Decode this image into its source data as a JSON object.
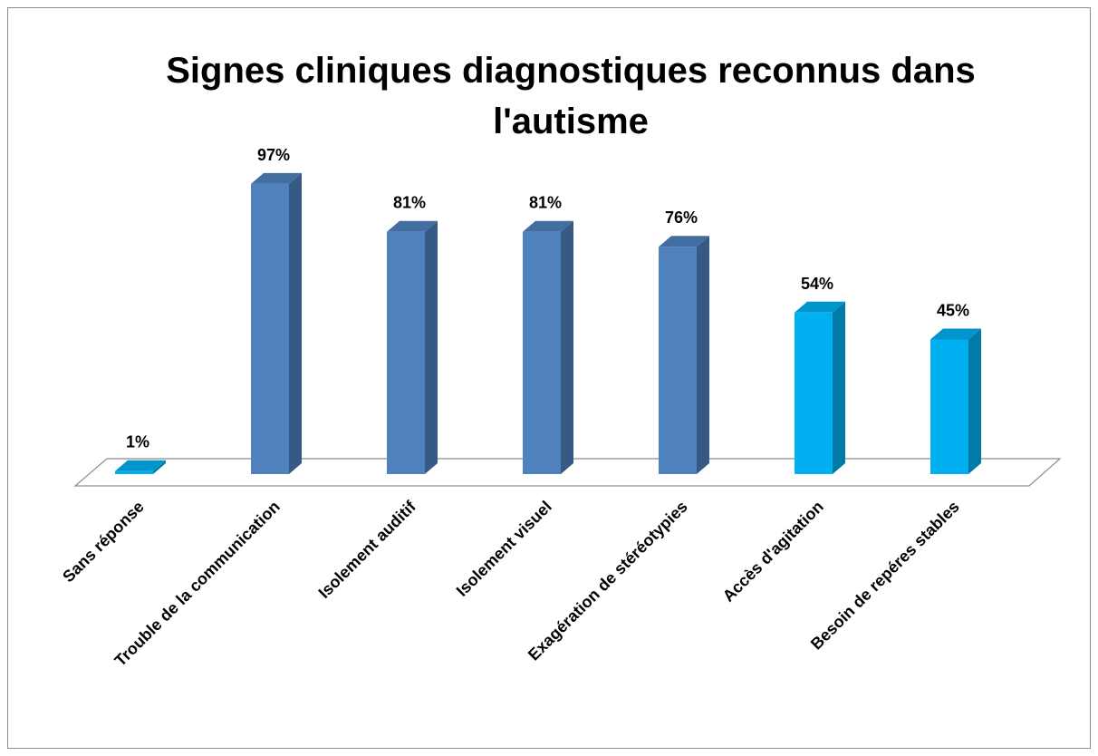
{
  "chart_data": {
    "type": "bar3d",
    "title": "Signes cliniques diagnostiques reconnus dans l'autisme",
    "categories": [
      "Sans réponse",
      "Trouble de la communication",
      "Isolement auditif",
      "Isolement visuel",
      "Exagération de stéréotypies",
      "Accès d'agitation",
      "Besoin de repéres stables"
    ],
    "values": [
      1,
      97,
      81,
      81,
      76,
      54,
      45
    ],
    "value_labels": [
      "1%",
      "97%",
      "81%",
      "81%",
      "76%",
      "54%",
      "45%"
    ],
    "colors": [
      "#00b0f0",
      "#4f81bd",
      "#4f81bd",
      "#4f81bd",
      "#4f81bd",
      "#00b0f0",
      "#00b0f0"
    ]
  }
}
